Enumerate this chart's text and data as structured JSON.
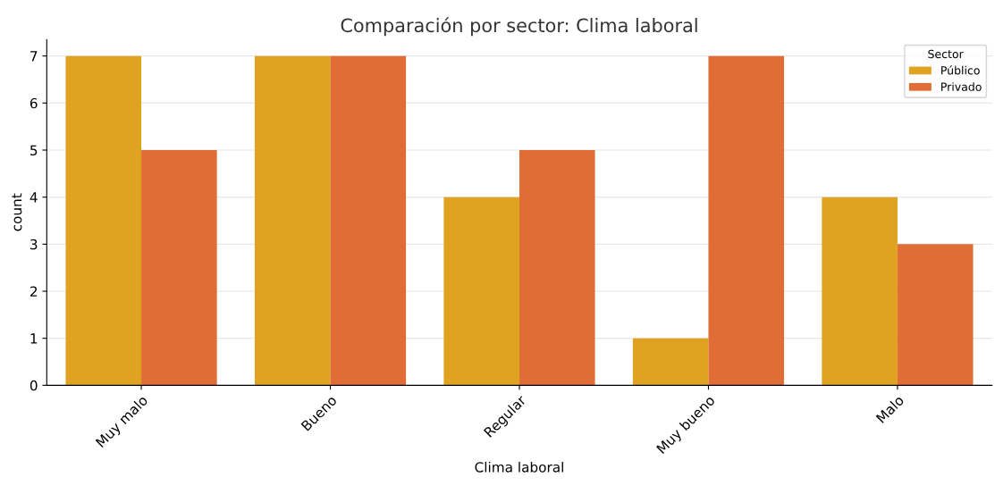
{
  "chart_data": {
    "type": "bar",
    "title": "Comparación por sector: Clima laboral",
    "xlabel": "Clima laboral",
    "ylabel": "count",
    "legend_title": "Sector",
    "categories": [
      "Muy malo",
      "Bueno",
      "Regular",
      "Muy bueno",
      "Malo"
    ],
    "series": [
      {
        "name": "Público",
        "color": "#e0a321",
        "values": [
          7,
          7,
          4,
          1,
          4
        ]
      },
      {
        "name": "Privado",
        "color": "#e06d35",
        "values": [
          5,
          7,
          5,
          7,
          3
        ]
      }
    ],
    "ylim": [
      0,
      7.35
    ],
    "yticks": [
      0,
      1,
      2,
      3,
      4,
      5,
      6,
      7
    ],
    "grid": "y",
    "legend": "top right"
  }
}
